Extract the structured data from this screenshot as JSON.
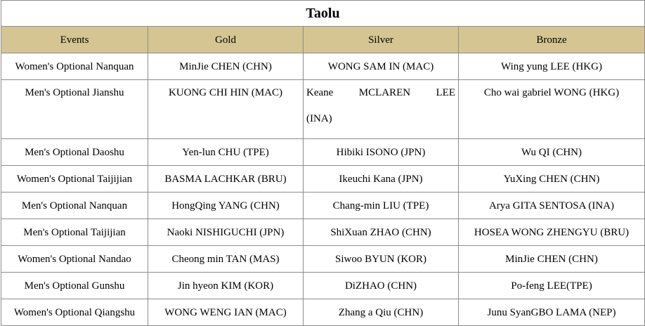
{
  "title": "Taolu",
  "headers": [
    "Events",
    "Gold",
    "Silver",
    "Bronze"
  ],
  "rows": [
    {
      "event": "Women's Optional Nanquan",
      "gold": "MinJie CHEN (CHN)",
      "silver": "WONG SAM IN (MAC)",
      "bronze": "Wing yung LEE (HKG)"
    },
    {
      "event": "Men's Optional Jianshu",
      "gold": "KUONG CHI HIN (MAC)",
      "silver": "Keane MCLAREN LEE (INA)",
      "bronze": "Cho wai gabriel WONG (HKG)"
    },
    {
      "event": "Men's Optional Daoshu",
      "gold": "Yen-lun CHU (TPE)",
      "silver": "Hibiki ISONO (JPN)",
      "bronze": "Wu QI (CHN)"
    },
    {
      "event": "Women's Optional Taijijian",
      "gold": "BASMA LACHKAR (BRU)",
      "silver": "Ikeuchi Kana (JPN)",
      "bronze": "YuXing CHEN (CHN)"
    },
    {
      "event": "Men's Optional Nanquan",
      "gold": "HongQing YANG (CHN)",
      "silver": "Chang-min LIU (TPE)",
      "bronze": "Arya GITA SENTOSA (INA)"
    },
    {
      "event": "Men's Optional Taijijian",
      "gold": "Naoki NISHIGUCHI (JPN)",
      "silver": "ShiXuan ZHAO (CHN)",
      "bronze": "HOSEA WONG ZHENGYU (BRU)"
    },
    {
      "event": "Women's Optional Nandao",
      "gold": "Cheong min TAN (MAS)",
      "silver": "Siwoo BYUN (KOR)",
      "bronze": "MinJie CHEN (CHN)"
    },
    {
      "event": "Men's Optional Gunshu",
      "gold": "Jin hyeon KIM (KOR)",
      "silver": "DiZHAO (CHN)",
      "bronze": "Po-feng LEE(TPE)"
    },
    {
      "event": "Women's Optional Qiangshu",
      "gold": "WONG WENG IAN (MAC)",
      "silver": "Zhang a Qiu (CHN)",
      "bronze": "Junu SyanGBO LAMA (NEP)"
    }
  ]
}
